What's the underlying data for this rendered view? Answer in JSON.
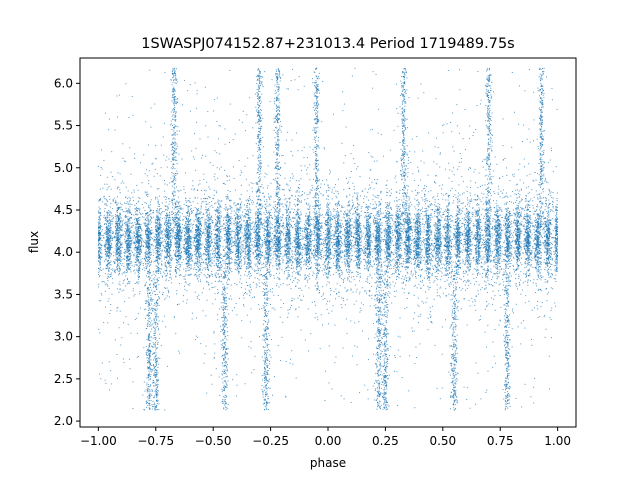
{
  "chart_data": {
    "type": "scatter",
    "title": "1SWASPJ074152.87+231013.4 Period 1719489.75s",
    "xlabel": "phase",
    "ylabel": "flux",
    "xlim": [
      -1.08,
      1.08
    ],
    "ylim": [
      1.93,
      6.3
    ],
    "x_ticks": [
      -1.0,
      -0.75,
      -0.5,
      -0.25,
      0.0,
      0.25,
      0.5,
      0.75,
      1.0
    ],
    "x_tick_labels": [
      "−1.00",
      "−0.75",
      "−0.50",
      "−0.25",
      "0.00",
      "0.25",
      "0.50",
      "0.75",
      "1.00"
    ],
    "y_ticks": [
      2.0,
      2.5,
      3.0,
      3.5,
      4.0,
      4.5,
      5.0,
      5.5,
      6.0
    ],
    "y_tick_labels": [
      "2.0",
      "2.5",
      "3.0",
      "3.5",
      "4.0",
      "4.5",
      "5.0",
      "5.5",
      "6.0"
    ],
    "grid": false,
    "legend": "none",
    "marker_color": "#1f77b4",
    "series": [
      {
        "phase_range": [
          -1.0,
          1.0
        ],
        "baseline_flux": 4.15,
        "core_flux_range": [
          3.6,
          4.6
        ],
        "flux_range": [
          2.13,
          6.18
        ],
        "point_count_approx": 24000,
        "clump_spacing_phase": 0.0435,
        "high_flux_spike_phases": [
          -0.67,
          -0.3,
          -0.22,
          -0.05,
          0.33,
          0.7,
          0.93
        ],
        "low_flux_spike_phases": [
          -0.78,
          -0.75,
          -0.45,
          -0.27,
          0.22,
          0.25,
          0.55,
          0.78
        ]
      }
    ]
  }
}
